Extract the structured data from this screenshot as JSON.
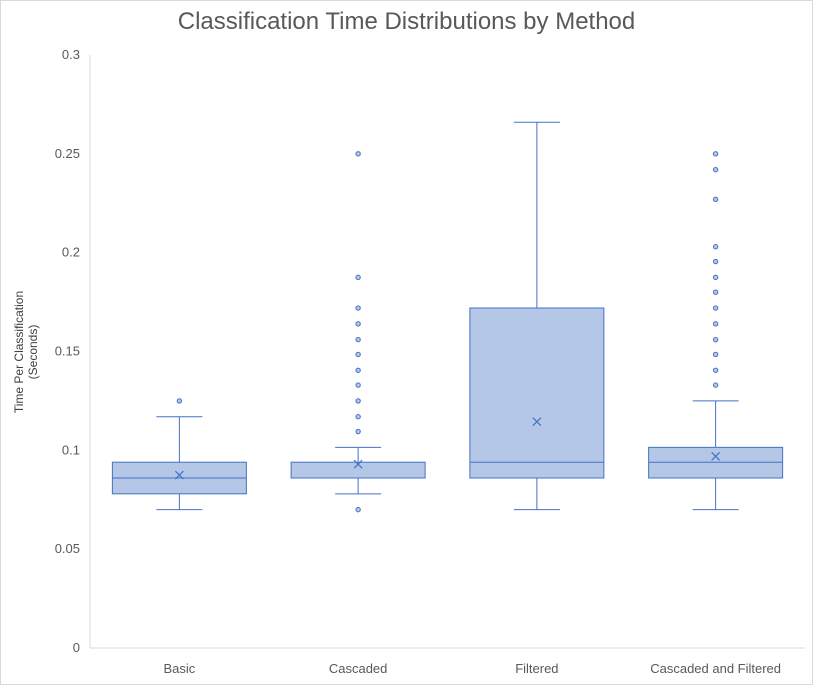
{
  "chart_data": {
    "type": "box",
    "title": "Classification Time Distributions by Method",
    "xlabel": "",
    "ylabel": [
      "Time Per Classification",
      "(Seconds)"
    ],
    "ylim": [
      0,
      0.3
    ],
    "yticks": [
      "0",
      "0.05",
      "0.1",
      "0.15",
      "0.2",
      "0.25",
      "0.3"
    ],
    "grid": false,
    "colors": {
      "box_fill": "#b4c7e7",
      "box_stroke": "#4472c4",
      "mean_marker": "#4472c4"
    },
    "categories": [
      "Basic",
      "Cascaded",
      "Filtered",
      "Cascaded and Filtered"
    ],
    "series": [
      {
        "category": "Basic",
        "min": 0.07,
        "q1": 0.078,
        "median": 0.086,
        "q3": 0.094,
        "max": 0.117,
        "mean": 0.0875,
        "outliers": [
          0.125
        ]
      },
      {
        "category": "Cascaded",
        "min": 0.078,
        "q1": 0.086,
        "median": 0.086,
        "q3": 0.094,
        "max": 0.1015,
        "mean": 0.093,
        "outliers": [
          0.07,
          0.1095,
          0.117,
          0.125,
          0.133,
          0.1405,
          0.1485,
          0.156,
          0.164,
          0.172,
          0.1875,
          0.25
        ]
      },
      {
        "category": "Filtered",
        "min": 0.07,
        "q1": 0.086,
        "median": 0.094,
        "q3": 0.172,
        "max": 0.266,
        "mean": 0.1145,
        "outliers": []
      },
      {
        "category": "Cascaded and Filtered",
        "min": 0.07,
        "q1": 0.086,
        "median": 0.094,
        "q3": 0.1015,
        "max": 0.125,
        "mean": 0.097,
        "outliers": [
          0.133,
          0.1405,
          0.1485,
          0.156,
          0.164,
          0.172,
          0.18,
          0.1875,
          0.1955,
          0.203,
          0.227,
          0.242,
          0.25
        ]
      }
    ]
  }
}
